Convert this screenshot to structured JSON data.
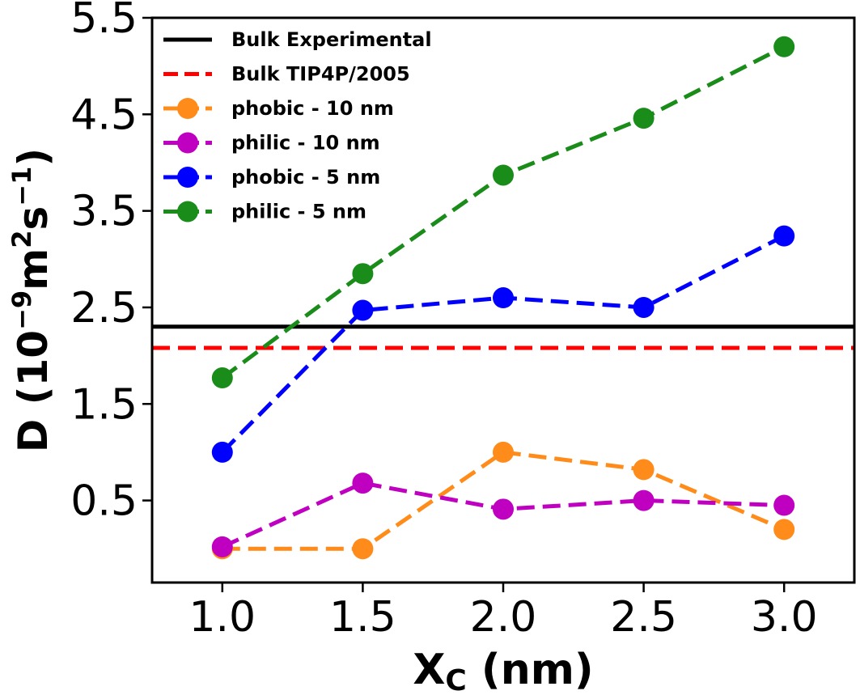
{
  "chart_data": {
    "type": "line",
    "x": [
      1.0,
      1.5,
      2.0,
      2.5,
      3.0
    ],
    "x_tick_labels": [
      "1.0",
      "1.5",
      "2.0",
      "2.5",
      "3.0"
    ],
    "y_tick_values": [
      0.5,
      1.5,
      2.5,
      3.5,
      4.5,
      5.5
    ],
    "y_tick_labels": [
      "0.5",
      "1.5",
      "2.5",
      "3.5",
      "4.5",
      "5.5"
    ],
    "xlim": [
      0.75,
      3.25
    ],
    "ylim": [
      -0.35,
      5.5
    ],
    "xlabel": {
      "main": "X",
      "sub": "C",
      "rest": " (nm)"
    },
    "ylabel": {
      "pre": "D (10",
      "exp1": "−9",
      "mid": "m",
      "exp2": "2",
      "mid2": "s",
      "exp3": "−1",
      "post": ")"
    },
    "reference_lines": [
      {
        "name": "Bulk Experimental",
        "y": 2.3,
        "color": "#000000",
        "style": "solid"
      },
      {
        "name": "Bulk TIP4P/2005",
        "y": 2.08,
        "color": "#ff0000",
        "style": "dashed"
      }
    ],
    "series": [
      {
        "name": "phobic - 10 nm",
        "color": "#ff8c1a",
        "values": [
          0.0,
          0.0,
          1.0,
          0.82,
          0.2
        ]
      },
      {
        "name": "philic - 10 nm",
        "color": "#c000c0",
        "values": [
          0.02,
          0.68,
          0.41,
          0.5,
          0.45
        ]
      },
      {
        "name": "phobic - 5 nm",
        "color": "#0000ff",
        "values": [
          1.0,
          2.47,
          2.6,
          2.5,
          3.24
        ]
      },
      {
        "name": "philic - 5 nm",
        "color": "#1a8c1a",
        "values": [
          1.77,
          2.85,
          3.87,
          4.46,
          5.2
        ]
      }
    ],
    "grid": false,
    "legend_position": "top-left"
  }
}
